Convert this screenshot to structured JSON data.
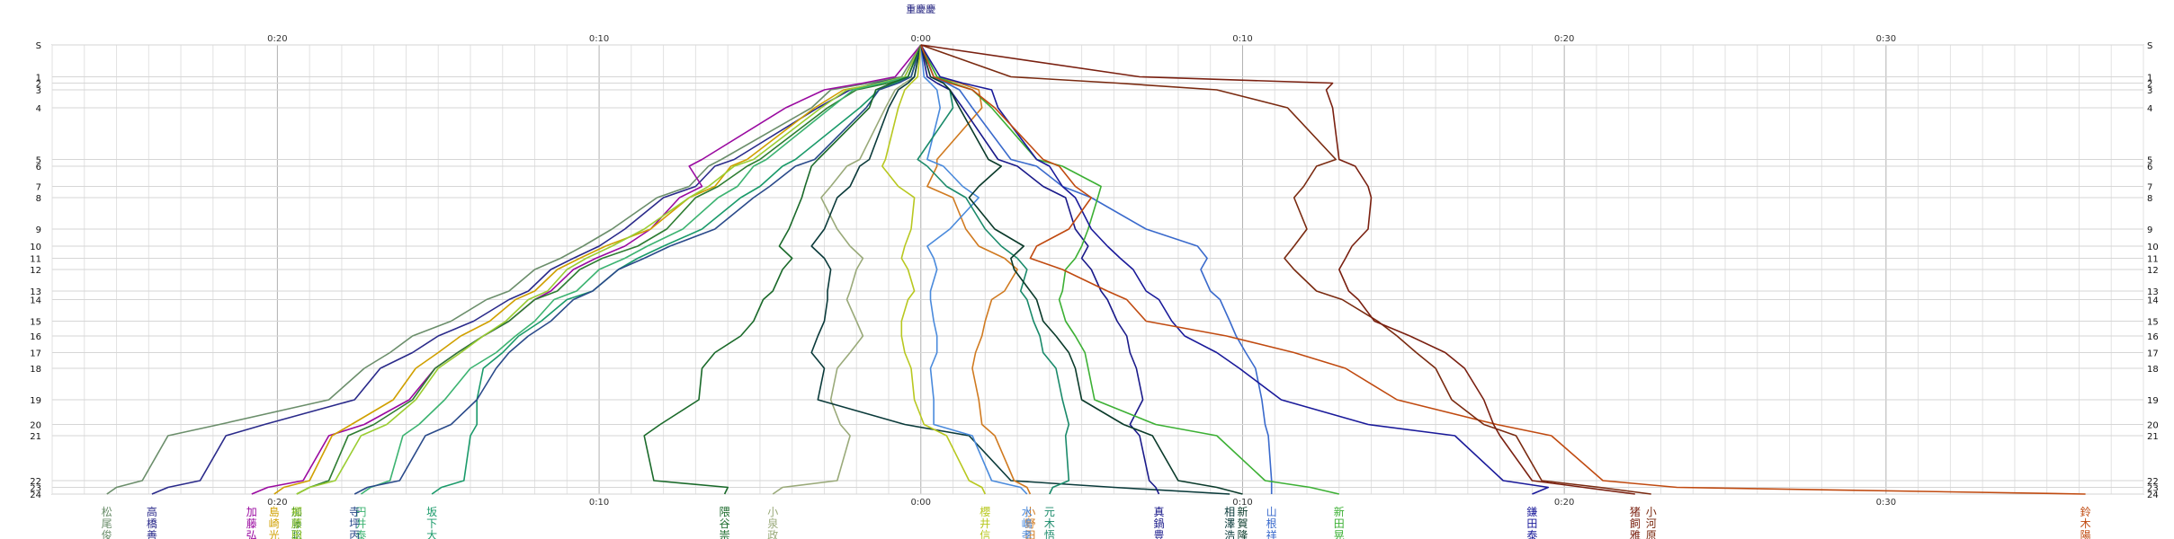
{
  "chart_data": {
    "type": "line",
    "title": "",
    "xlabel": "",
    "ylabel": "",
    "x_unit": "minutes relative to leader (0:00)",
    "x_tick_labels": [
      "0:20",
      "0:10",
      "0:00",
      "0:10",
      "0:20",
      "0:30"
    ],
    "x_tick_values": [
      -20,
      -10,
      0,
      10,
      20,
      30
    ],
    "xlim": [
      -27,
      38
    ],
    "top_center_label": "重慶慶",
    "lap_labels": [
      "S",
      "1",
      "2",
      "3",
      "4",
      "5",
      "6",
      "7",
      "8",
      "9",
      "10",
      "11",
      "12",
      "13",
      "14",
      "15",
      "16",
      "17",
      "18",
      "19",
      "20",
      "21",
      "22",
      "23",
      "24"
    ],
    "lap_count": 24,
    "grid": true,
    "legend": "names at bottom of each line",
    "series": [
      {
        "name": "松尾俊",
        "color": "#6b8e6b",
        "values": [
          0,
          -0.6,
          -1.6,
          -2.8,
          -3.4,
          -6.2,
          -6.6,
          -7.2,
          -8.2,
          -9.6,
          -10.5,
          -11.2,
          -12.0,
          -12.8,
          -13.5,
          -14.6,
          -15.8,
          -16.5,
          -17.3,
          -18.4,
          -21.8,
          -23.4,
          -24.2,
          -25.0,
          -25.3
        ]
      },
      {
        "name": "高橋善",
        "color": "#2a2a8a",
        "values": [
          0,
          -0.5,
          -1.4,
          -2.2,
          -3.2,
          -5.8,
          -6.4,
          -7.0,
          -8.0,
          -9.2,
          -10.0,
          -10.8,
          -11.5,
          -12.2,
          -12.8,
          -13.9,
          -15.0,
          -15.8,
          -16.8,
          -17.6,
          -20.4,
          -21.6,
          -22.4,
          -23.4,
          -23.9
        ]
      },
      {
        "name": "加藤弘",
        "color": "#9a0aa0",
        "values": [
          0,
          -0.8,
          -1.8,
          -3.0,
          -4.2,
          -6.8,
          -7.2,
          -6.8,
          -7.5,
          -8.4,
          -9.2,
          -10.1,
          -10.8,
          -11.5,
          -12.0,
          -12.8,
          -13.6,
          -14.4,
          -15.1,
          -15.9,
          -17.3,
          -18.4,
          -19.2,
          -20.3,
          -20.8
        ]
      },
      {
        "name": "島崎光",
        "color": "#d0a000",
        "values": [
          0,
          -0.4,
          -1.2,
          -2.4,
          -3.3,
          -5.4,
          -5.9,
          -6.4,
          -7.2,
          -8.4,
          -9.8,
          -10.6,
          -11.3,
          -12.0,
          -12.6,
          -13.4,
          -14.3,
          -15.0,
          -15.7,
          -16.4,
          -17.7,
          -18.3,
          -19.0,
          -19.8,
          -20.1
        ]
      },
      {
        "name": "加藤聡",
        "color": "#2e7d32",
        "values": [
          0,
          -0.3,
          -1.0,
          -2.0,
          -2.9,
          -5.0,
          -5.4,
          -6.3,
          -7.0,
          -7.9,
          -8.8,
          -9.9,
          -10.6,
          -11.3,
          -12.0,
          -12.8,
          -13.6,
          -14.4,
          -15.1,
          -15.8,
          -17.0,
          -17.8,
          -18.4,
          -19.0,
          -19.4
        ]
      },
      {
        "name": "郷原田",
        "color": "#9acd32",
        "values": [
          0,
          -0.5,
          -1.3,
          -2.3,
          -3.1,
          -5.2,
          -5.8,
          -6.6,
          -7.2,
          -8.6,
          -9.6,
          -10.4,
          -11.0,
          -11.6,
          -12.2,
          -12.9,
          -13.6,
          -14.3,
          -15.0,
          -15.7,
          -16.6,
          -17.4,
          -18.2,
          -19.0,
          -19.4
        ]
      },
      {
        "name": "円井泰",
        "color": "#3cb371",
        "values": [
          0,
          -0.4,
          -1.2,
          -2.1,
          -2.8,
          -4.8,
          -5.2,
          -5.7,
          -6.3,
          -7.4,
          -8.5,
          -9.2,
          -10.0,
          -10.7,
          -11.4,
          -12.0,
          -12.6,
          -13.2,
          -14.0,
          -14.8,
          -15.6,
          -16.1,
          -16.5,
          -17.1,
          -17.4
        ]
      },
      {
        "name": "坂下大",
        "color": "#1a9a6a",
        "values": [
          0,
          -0.3,
          -0.8,
          -1.3,
          -1.9,
          -3.9,
          -4.3,
          -5.0,
          -5.6,
          -6.8,
          -8.0,
          -8.8,
          -9.4,
          -10.2,
          -11.0,
          -11.8,
          -12.5,
          -13.0,
          -13.6,
          -13.8,
          -13.8,
          -14.0,
          -14.2,
          -14.9,
          -15.2
        ]
      },
      {
        "name": "寺坪丙",
        "color": "#2a4a8a",
        "values": [
          0,
          -0.3,
          -0.7,
          -1.3,
          -1.7,
          -3.3,
          -3.9,
          -4.7,
          -5.2,
          -6.4,
          -7.8,
          -8.6,
          -9.4,
          -10.2,
          -10.8,
          -11.5,
          -12.2,
          -12.8,
          -13.2,
          -13.8,
          -14.6,
          -15.4,
          -16.2,
          -17.2,
          -17.6
        ]
      },
      {
        "name": "隈谷崇",
        "color": "#1a6a2a",
        "values": [
          0,
          -0.4,
          -0.9,
          -1.4,
          -1.6,
          -3.2,
          -3.4,
          -3.6,
          -3.7,
          -4.1,
          -4.4,
          -4.0,
          -4.3,
          -4.6,
          -4.9,
          -5.2,
          -5.6,
          -6.4,
          -6.8,
          -6.9,
          -8.1,
          -8.6,
          -8.3,
          -6.0,
          -6.1
        ]
      },
      {
        "name": "小泉政",
        "color": "#9aaa7a",
        "values": [
          0,
          -0.2,
          -0.5,
          -0.8,
          -1.1,
          -1.9,
          -2.3,
          -2.8,
          -3.1,
          -2.6,
          -2.2,
          -1.8,
          -2.0,
          -2.2,
          -2.3,
          -2.0,
          -1.8,
          -2.2,
          -2.6,
          -2.8,
          -2.5,
          -2.2,
          -2.6,
          -4.3,
          -4.6
        ]
      },
      {
        "name": "相澤浩",
        "color": "#0a3a3a",
        "values": [
          0,
          -0.2,
          -0.4,
          -0.7,
          -1.0,
          -1.6,
          -1.9,
          -2.2,
          -2.6,
          -3.0,
          -3.4,
          -3.0,
          -2.8,
          -2.9,
          -2.9,
          -3.0,
          -3.2,
          -3.4,
          -3.0,
          -3.2,
          -0.5,
          1.5,
          2.8,
          6.0,
          9.6
        ]
      },
      {
        "name": "櫻井信",
        "color": "#b8c820",
        "values": [
          0,
          -0.1,
          -0.3,
          -0.5,
          -0.7,
          -1.1,
          -1.2,
          -0.7,
          -0.2,
          -0.3,
          -0.5,
          -0.6,
          -0.4,
          -0.2,
          -0.4,
          -0.6,
          -0.6,
          -0.5,
          -0.3,
          -0.2,
          0.1,
          0.8,
          1.5,
          1.9,
          2.0
        ]
      },
      {
        "name": "小野田",
        "color": "#d07a20",
        "values": [
          0,
          0.5,
          1.2,
          1.8,
          1.9,
          0.5,
          0.5,
          0.2,
          1.0,
          1.4,
          1.8,
          2.6,
          3.0,
          2.6,
          2.2,
          2.0,
          1.9,
          1.7,
          1.6,
          1.8,
          1.9,
          2.3,
          2.9,
          3.3,
          3.4
        ]
      },
      {
        "name": "水嶋孝",
        "color": "#4a8adc",
        "values": [
          0,
          0.1,
          0.3,
          0.5,
          0.6,
          0.2,
          0.7,
          1.3,
          1.8,
          0.9,
          0.2,
          0.4,
          0.5,
          0.3,
          0.3,
          0.4,
          0.5,
          0.5,
          0.3,
          0.4,
          0.4,
          1.6,
          2.2,
          3.1,
          3.3
        ]
      },
      {
        "name": "元木悟",
        "color": "#1a8a6a",
        "values": [
          0,
          0.4,
          0.7,
          0.9,
          1.0,
          -0.1,
          0.2,
          0.8,
          1.4,
          2.0,
          2.5,
          3.0,
          3.3,
          3.1,
          3.3,
          3.5,
          3.7,
          3.8,
          4.2,
          4.4,
          4.6,
          4.5,
          4.6,
          4.1,
          4.0
        ]
      },
      {
        "name": "真鍋豊",
        "color": "#1a1a8a",
        "values": [
          0,
          0.2,
          0.5,
          0.9,
          1.3,
          2.4,
          3.0,
          3.8,
          4.5,
          4.8,
          5.2,
          5.0,
          5.3,
          5.6,
          5.8,
          6.1,
          6.4,
          6.5,
          6.7,
          6.9,
          6.5,
          6.8,
          7.1,
          7.3,
          7.4
        ]
      },
      {
        "name": "新賀隆",
        "color": "#0a3a2a",
        "values": [
          0,
          0.3,
          0.7,
          0.9,
          1.2,
          2.1,
          2.5,
          1.8,
          1.5,
          2.3,
          3.2,
          2.8,
          2.9,
          3.4,
          3.6,
          3.8,
          4.2,
          4.6,
          4.8,
          5.0,
          6.3,
          7.2,
          8.0,
          9.2,
          10.0
        ]
      },
      {
        "name": "山根祥",
        "color": "#3a6acc",
        "values": [
          0,
          0.4,
          0.8,
          1.2,
          1.6,
          2.8,
          3.6,
          4.4,
          5.3,
          7.0,
          8.6,
          8.9,
          8.7,
          9.0,
          9.3,
          9.6,
          9.8,
          10.1,
          10.4,
          10.6,
          10.7,
          10.8,
          10.9,
          10.9,
          10.9
        ]
      },
      {
        "name": "新田晃",
        "color": "#3cb034",
        "values": [
          0,
          0.5,
          1.0,
          1.6,
          2.2,
          3.6,
          4.4,
          5.6,
          5.5,
          5.2,
          5.0,
          4.8,
          4.5,
          4.4,
          4.3,
          4.5,
          4.8,
          5.1,
          5.2,
          5.4,
          7.3,
          9.2,
          10.7,
          12.1,
          13.0
        ]
      },
      {
        "name": "鎌田泰",
        "color": "#1a1a9a",
        "values": [
          0,
          0.6,
          1.3,
          2.2,
          2.4,
          3.6,
          4.0,
          4.4,
          4.8,
          5.3,
          5.8,
          6.2,
          6.6,
          7.0,
          7.4,
          7.8,
          8.2,
          9.2,
          9.9,
          11.2,
          13.9,
          16.6,
          18.1,
          19.5,
          19.0
        ]
      },
      {
        "name": "鈴木陽",
        "color": "#c04a10",
        "values": [
          0,
          0.4,
          0.9,
          1.6,
          2.3,
          3.8,
          4.3,
          4.8,
          5.3,
          4.6,
          3.6,
          3.4,
          4.4,
          5.8,
          6.4,
          7.0,
          9.5,
          11.6,
          13.2,
          14.8,
          17.9,
          19.6,
          21.2,
          23.5,
          36.2
        ]
      },
      {
        "name": "小河原",
        "color": "#7a2a10",
        "values": [
          0,
          2.8,
          6.1,
          9.2,
          11.4,
          12.9,
          12.3,
          11.9,
          11.6,
          12.0,
          11.6,
          11.3,
          11.6,
          12.3,
          13.1,
          14.2,
          14.8,
          15.4,
          16.0,
          16.5,
          17.5,
          18.5,
          19.3,
          21.1,
          22.7
        ]
      },
      {
        "name": "猪飼雅",
        "color": "#7a2010",
        "values": [
          0,
          6.8,
          12.8,
          12.6,
          12.8,
          13.0,
          13.5,
          13.9,
          14.0,
          13.9,
          13.4,
          13.2,
          13.0,
          13.3,
          13.6,
          14.1,
          15.2,
          16.3,
          16.9,
          17.5,
          17.8,
          18.0,
          19.0,
          20.6,
          22.2
        ]
      }
    ]
  }
}
